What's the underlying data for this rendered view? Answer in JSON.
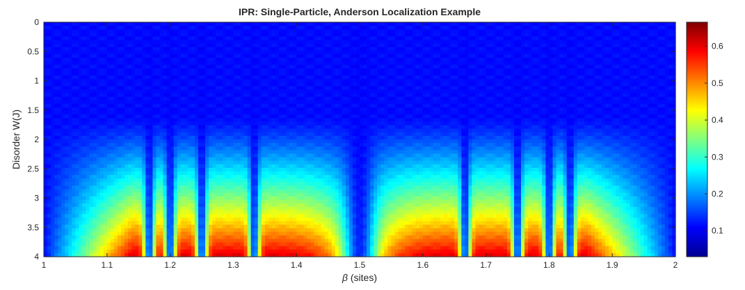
{
  "chart_data": {
    "type": "heatmap",
    "title": "IPR: Single-Particle, Anderson Localization Example",
    "xlabel_symbol": "β",
    "xlabel_unit": "(sites)",
    "ylabel": "Disorder W(J)",
    "xlim": [
      1,
      2
    ],
    "ylim": [
      0,
      4
    ],
    "y_reversed": true,
    "xticks": [
      1,
      1.1,
      1.2,
      1.3,
      1.4,
      1.5,
      1.6,
      1.7,
      1.8,
      1.9,
      2
    ],
    "xtick_labels": [
      "1",
      "1.1",
      "1.2",
      "1.3",
      "1.4",
      "1.5",
      "1.6",
      "1.7",
      "1.8",
      "1.9",
      "2"
    ],
    "yticks": [
      0,
      0.5,
      1,
      1.5,
      2,
      2.5,
      3,
      3.5,
      4
    ],
    "ytick_labels": [
      "0",
      "0.5",
      "1",
      "1.5",
      "2",
      "2.5",
      "3",
      "3.5",
      "4"
    ],
    "colormap": "jet",
    "clim": [
      0.03,
      0.665
    ],
    "colorbar_ticks": [
      0.1,
      0.2,
      0.3,
      0.4,
      0.5,
      0.6
    ],
    "colorbar_tick_labels": [
      "0.1",
      "0.2",
      "0.3",
      "0.4",
      "0.5",
      "0.6"
    ],
    "localization_onset_W": 1.8,
    "peak_ipr_at_W4": 0.6,
    "dips_beta": [
      1.167,
      1.2,
      1.25,
      1.333,
      1.5,
      1.667,
      1.75,
      1.8,
      1.833
    ],
    "grid": false
  }
}
